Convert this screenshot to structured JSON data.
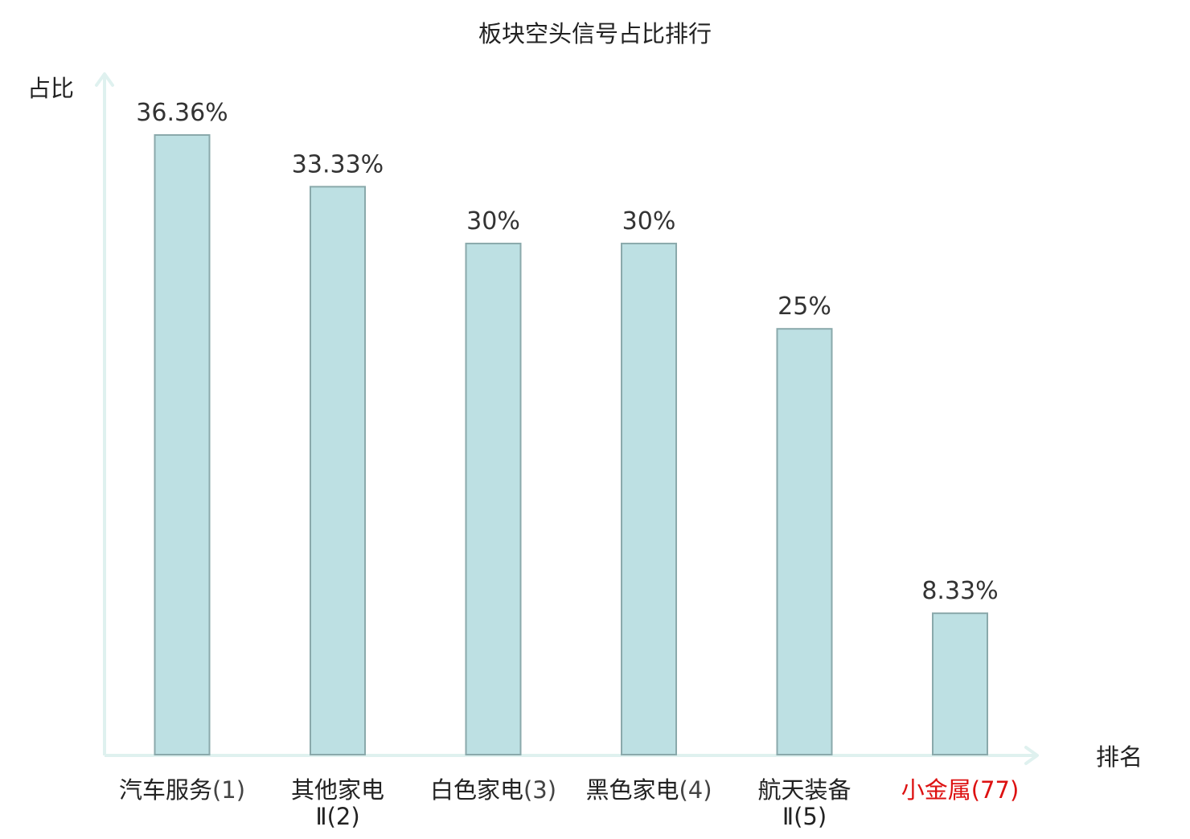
{
  "chart_data": {
    "type": "bar",
    "title": "板块空头信号占比排行",
    "xlabel": "排名",
    "ylabel": "占比",
    "ylim": [
      0,
      40
    ],
    "grid": false,
    "legend": "none",
    "categories": [
      {
        "name": "汽车服务",
        "rank": "(1)",
        "highlight": false
      },
      {
        "name": "其他家电",
        "name_line2": "Ⅱ(2)",
        "highlight": false
      },
      {
        "name": "白色家电",
        "rank": "(3)",
        "highlight": false
      },
      {
        "name": "黑色家电",
        "rank": "(4)",
        "highlight": false
      },
      {
        "name": "航天装备",
        "name_line2": "Ⅱ(5)",
        "highlight": false
      },
      {
        "name": "小金属",
        "rank": "(77)",
        "highlight": true
      }
    ],
    "values": [
      36.36,
      33.33,
      30,
      30,
      25,
      8.33
    ],
    "data_labels": [
      "36.36%",
      "33.33%",
      "30%",
      "30%",
      "25%",
      "8.33%"
    ],
    "colors": {
      "bar_fill": "#bde0e3",
      "bar_stroke": "#8aa9ab",
      "axis": "#dff1ef",
      "text": "#333333",
      "label": "#222222",
      "highlight": "#dd1111"
    }
  }
}
